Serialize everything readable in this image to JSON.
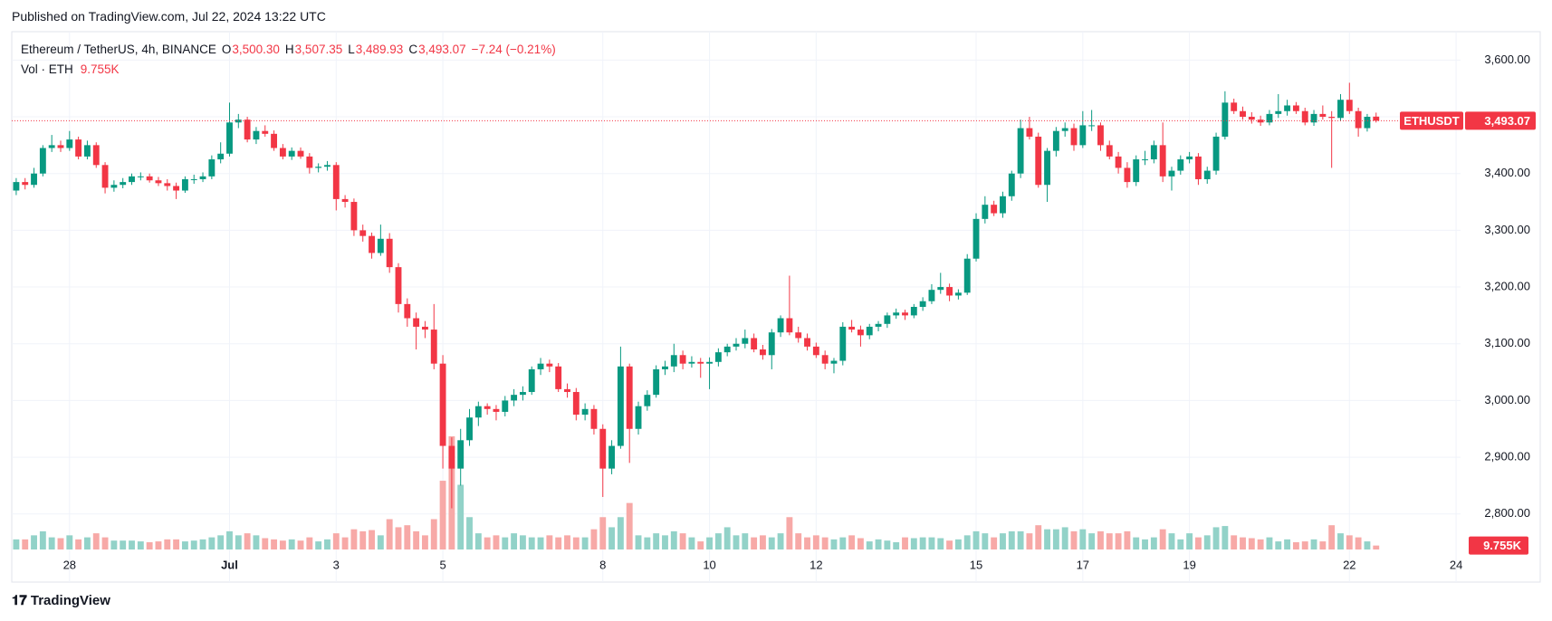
{
  "header": "Published on TradingView.com, Jul 22, 2024 13:22 UTC",
  "footer": "TradingView",
  "chart_data": {
    "type": "candlestick",
    "legend": {
      "title": "Ethereum / TetherUS, 4h, BINANCE",
      "fields": [
        {
          "key": "O",
          "value": "3,500.30"
        },
        {
          "key": "H",
          "value": "3,507.35"
        },
        {
          "key": "L",
          "value": "3,489.93"
        },
        {
          "key": "C",
          "value": "3,493.07"
        }
      ],
      "change": "−7.24 (−0.21%)",
      "volume_title": "Vol · ETH",
      "volume_label": "9.755K"
    },
    "symbol_tag": "ETHUSDT",
    "up_color": "#089981",
    "down_color": "#f23645",
    "volume_up_color": "#92d2c8",
    "volume_down_color": "#f7a9a7",
    "grid": true,
    "xlim": [
      -0.5,
      162.5
    ],
    "ylim": [
      2680,
      3650
    ],
    "vlim": [
      0,
      300
    ],
    "xticks": [
      {
        "value": 6,
        "label": "28"
      },
      {
        "value": 24,
        "label": "Jul"
      },
      {
        "value": 36,
        "label": "3"
      },
      {
        "value": 48,
        "label": "5"
      },
      {
        "value": 66,
        "label": "8"
      },
      {
        "value": 78,
        "label": "10"
      },
      {
        "value": 90,
        "label": "12"
      },
      {
        "value": 108,
        "label": "15"
      },
      {
        "value": 120,
        "label": "17"
      },
      {
        "value": 132,
        "label": "19"
      },
      {
        "value": 150,
        "label": "22"
      },
      {
        "value": 162,
        "label": "24"
      }
    ],
    "yticks": [
      {
        "value": 2800,
        "label": "2,800.00"
      },
      {
        "value": 2900,
        "label": "2,900.00"
      },
      {
        "value": 3000,
        "label": "3,000.00"
      },
      {
        "value": 3100,
        "label": "3,100.00"
      },
      {
        "value": 3200,
        "label": "3,200.00"
      },
      {
        "value": 3300,
        "label": "3,300.00"
      },
      {
        "value": 3400,
        "label": "3,400.00"
      },
      {
        "value": 3500,
        "label": "3,500.00"
      },
      {
        "value": 3600,
        "label": "3,600.00"
      }
    ],
    "ohlc": [
      [
        3370,
        3392,
        3362,
        3385
      ],
      [
        3385,
        3392,
        3372,
        3380
      ],
      [
        3380,
        3410,
        3375,
        3400
      ],
      [
        3400,
        3450,
        3395,
        3445
      ],
      [
        3445,
        3468,
        3438,
        3450
      ],
      [
        3450,
        3458,
        3438,
        3445
      ],
      [
        3445,
        3475,
        3440,
        3460
      ],
      [
        3460,
        3465,
        3425,
        3430
      ],
      [
        3430,
        3458,
        3425,
        3450
      ],
      [
        3450,
        3455,
        3410,
        3415
      ],
      [
        3415,
        3420,
        3365,
        3375
      ],
      [
        3375,
        3388,
        3368,
        3380
      ],
      [
        3380,
        3392,
        3374,
        3385
      ],
      [
        3385,
        3400,
        3380,
        3395
      ],
      [
        3395,
        3402,
        3388,
        3395
      ],
      [
        3395,
        3400,
        3384,
        3388
      ],
      [
        3388,
        3394,
        3378,
        3383
      ],
      [
        3383,
        3390,
        3370,
        3378
      ],
      [
        3378,
        3384,
        3355,
        3370
      ],
      [
        3370,
        3395,
        3366,
        3390
      ],
      [
        3390,
        3398,
        3382,
        3390
      ],
      [
        3390,
        3402,
        3385,
        3395
      ],
      [
        3395,
        3432,
        3390,
        3425
      ],
      [
        3425,
        3455,
        3418,
        3435
      ],
      [
        3435,
        3525,
        3430,
        3490
      ],
      [
        3490,
        3505,
        3480,
        3495
      ],
      [
        3495,
        3500,
        3455,
        3460
      ],
      [
        3460,
        3482,
        3452,
        3475
      ],
      [
        3475,
        3485,
        3465,
        3470
      ],
      [
        3470,
        3476,
        3440,
        3445
      ],
      [
        3445,
        3452,
        3425,
        3430
      ],
      [
        3430,
        3446,
        3424,
        3440
      ],
      [
        3440,
        3446,
        3426,
        3430
      ],
      [
        3430,
        3436,
        3400,
        3410
      ],
      [
        3410,
        3418,
        3402,
        3412
      ],
      [
        3412,
        3422,
        3405,
        3415
      ],
      [
        3415,
        3420,
        3335,
        3355
      ],
      [
        3355,
        3362,
        3340,
        3350
      ],
      [
        3350,
        3356,
        3290,
        3300
      ],
      [
        3300,
        3310,
        3280,
        3290
      ],
      [
        3290,
        3296,
        3250,
        3260
      ],
      [
        3260,
        3310,
        3255,
        3285
      ],
      [
        3285,
        3295,
        3225,
        3235
      ],
      [
        3235,
        3242,
        3155,
        3170
      ],
      [
        3170,
        3180,
        3130,
        3145
      ],
      [
        3145,
        3155,
        3090,
        3130
      ],
      [
        3130,
        3140,
        3110,
        3125
      ],
      [
        3125,
        3170,
        3055,
        3065
      ],
      [
        3065,
        3080,
        2880,
        2920
      ],
      [
        2920,
        2935,
        2810,
        2880
      ],
      [
        2880,
        2950,
        2850,
        2930
      ],
      [
        2930,
        2985,
        2920,
        2970
      ],
      [
        2970,
        2998,
        2955,
        2990
      ],
      [
        2990,
        2995,
        2975,
        2985
      ],
      [
        2985,
        2992,
        2965,
        2980
      ],
      [
        2980,
        3008,
        2972,
        3000
      ],
      [
        3000,
        3020,
        2990,
        3010
      ],
      [
        3010,
        3025,
        3000,
        3015
      ],
      [
        3015,
        3060,
        3010,
        3055
      ],
      [
        3055,
        3075,
        3045,
        3065
      ],
      [
        3065,
        3072,
        3050,
        3060
      ],
      [
        3060,
        3066,
        3015,
        3020
      ],
      [
        3020,
        3030,
        3005,
        3015
      ],
      [
        3015,
        3022,
        2965,
        2975
      ],
      [
        2975,
        2995,
        2965,
        2985
      ],
      [
        2985,
        2992,
        2940,
        2950
      ],
      [
        2950,
        2958,
        2830,
        2880
      ],
      [
        2880,
        2930,
        2870,
        2920
      ],
      [
        2920,
        3095,
        2915,
        3060
      ],
      [
        3060,
        3065,
        2890,
        2950
      ],
      [
        2950,
        2998,
        2940,
        2990
      ],
      [
        2990,
        3018,
        2982,
        3010
      ],
      [
        3010,
        3062,
        3005,
        3055
      ],
      [
        3055,
        3070,
        3045,
        3060
      ],
      [
        3060,
        3100,
        3050,
        3080
      ],
      [
        3080,
        3088,
        3055,
        3065
      ],
      [
        3065,
        3078,
        3058,
        3068
      ],
      [
        3068,
        3075,
        3040,
        3065
      ],
      [
        3065,
        3076,
        3020,
        3068
      ],
      [
        3068,
        3092,
        3060,
        3085
      ],
      [
        3085,
        3100,
        3078,
        3095
      ],
      [
        3095,
        3110,
        3088,
        3100
      ],
      [
        3100,
        3125,
        3092,
        3110
      ],
      [
        3110,
        3118,
        3085,
        3090
      ],
      [
        3090,
        3098,
        3072,
        3080
      ],
      [
        3080,
        3126,
        3055,
        3120
      ],
      [
        3120,
        3150,
        3112,
        3145
      ],
      [
        3145,
        3220,
        3115,
        3120
      ],
      [
        3120,
        3130,
        3102,
        3110
      ],
      [
        3110,
        3118,
        3088,
        3095
      ],
      [
        3095,
        3102,
        3075,
        3080
      ],
      [
        3080,
        3088,
        3055,
        3065
      ],
      [
        3065,
        3075,
        3048,
        3070
      ],
      [
        3070,
        3138,
        3062,
        3130
      ],
      [
        3130,
        3142,
        3120,
        3125
      ],
      [
        3125,
        3132,
        3095,
        3115
      ],
      [
        3115,
        3135,
        3108,
        3130
      ],
      [
        3130,
        3140,
        3122,
        3135
      ],
      [
        3135,
        3155,
        3128,
        3150
      ],
      [
        3150,
        3162,
        3144,
        3155
      ],
      [
        3155,
        3160,
        3142,
        3150
      ],
      [
        3150,
        3170,
        3145,
        3165
      ],
      [
        3165,
        3182,
        3158,
        3175
      ],
      [
        3175,
        3205,
        3170,
        3195
      ],
      [
        3195,
        3225,
        3188,
        3200
      ],
      [
        3200,
        3206,
        3175,
        3185
      ],
      [
        3185,
        3196,
        3178,
        3190
      ],
      [
        3190,
        3258,
        3186,
        3250
      ],
      [
        3250,
        3330,
        3245,
        3320
      ],
      [
        3320,
        3360,
        3312,
        3345
      ],
      [
        3345,
        3352,
        3325,
        3330
      ],
      [
        3330,
        3368,
        3322,
        3360
      ],
      [
        3360,
        3405,
        3352,
        3400
      ],
      [
        3400,
        3495,
        3392,
        3480
      ],
      [
        3480,
        3500,
        3460,
        3465
      ],
      [
        3465,
        3472,
        3375,
        3380
      ],
      [
        3380,
        3445,
        3350,
        3440
      ],
      [
        3440,
        3482,
        3430,
        3475
      ],
      [
        3475,
        3490,
        3465,
        3480
      ],
      [
        3480,
        3488,
        3440,
        3450
      ],
      [
        3450,
        3510,
        3445,
        3485
      ],
      [
        3485,
        3512,
        3475,
        3485
      ],
      [
        3485,
        3490,
        3440,
        3450
      ],
      [
        3450,
        3458,
        3425,
        3430
      ],
      [
        3430,
        3438,
        3400,
        3410
      ],
      [
        3410,
        3420,
        3375,
        3385
      ],
      [
        3385,
        3432,
        3378,
        3425
      ],
      [
        3425,
        3440,
        3415,
        3425
      ],
      [
        3425,
        3458,
        3418,
        3450
      ],
      [
        3450,
        3490,
        3385,
        3395
      ],
      [
        3395,
        3412,
        3370,
        3405
      ],
      [
        3405,
        3432,
        3398,
        3425
      ],
      [
        3425,
        3438,
        3418,
        3430
      ],
      [
        3430,
        3436,
        3380,
        3390
      ],
      [
        3390,
        3412,
        3382,
        3405
      ],
      [
        3405,
        3472,
        3398,
        3465
      ],
      [
        3465,
        3545,
        3460,
        3525
      ],
      [
        3525,
        3532,
        3505,
        3510
      ],
      [
        3510,
        3518,
        3495,
        3500
      ],
      [
        3500,
        3508,
        3488,
        3495
      ],
      [
        3495,
        3502,
        3484,
        3490
      ],
      [
        3490,
        3512,
        3485,
        3505
      ],
      [
        3505,
        3540,
        3498,
        3510
      ],
      [
        3510,
        3530,
        3502,
        3520
      ],
      [
        3520,
        3526,
        3505,
        3510
      ],
      [
        3510,
        3516,
        3485,
        3490
      ],
      [
        3490,
        3512,
        3484,
        3505
      ],
      [
        3505,
        3520,
        3495,
        3500
      ],
      [
        3500,
        3510,
        3410,
        3498
      ],
      [
        3498,
        3540,
        3492,
        3530
      ],
      [
        3530,
        3560,
        3505,
        3510
      ],
      [
        3510,
        3516,
        3465,
        3480
      ],
      [
        3480,
        3505,
        3474,
        3500
      ],
      [
        3500.3,
        3507.35,
        3489.93,
        3493.07
      ]
    ],
    "volume": [
      25,
      25,
      35,
      45,
      30,
      28,
      35,
      25,
      30,
      40,
      30,
      22,
      22,
      22,
      20,
      18,
      20,
      25,
      25,
      20,
      22,
      25,
      30,
      35,
      45,
      35,
      40,
      35,
      28,
      25,
      22,
      25,
      22,
      30,
      20,
      25,
      40,
      30,
      50,
      45,
      48,
      35,
      75,
      55,
      60,
      45,
      35,
      75,
      170,
      280,
      160,
      80,
      40,
      30,
      35,
      30,
      40,
      35,
      30,
      30,
      35,
      30,
      35,
      30,
      30,
      50,
      80,
      55,
      80,
      115,
      35,
      30,
      40,
      35,
      45,
      40,
      30,
      20,
      30,
      40,
      55,
      35,
      40,
      30,
      35,
      30,
      40,
      80,
      40,
      30,
      35,
      30,
      25,
      30,
      35,
      28,
      20,
      25,
      22,
      18,
      30,
      28,
      30,
      30,
      28,
      22,
      25,
      35,
      45,
      40,
      30,
      40,
      45,
      45,
      40,
      60,
      50,
      50,
      55,
      45,
      50,
      40,
      45,
      40,
      40,
      45,
      30,
      25,
      30,
      50,
      40,
      25,
      40,
      30,
      35,
      55,
      58,
      35,
      30,
      28,
      25,
      30,
      20,
      25,
      18,
      20,
      25,
      20,
      60,
      40,
      35,
      30,
      20,
      9.755
    ]
  }
}
